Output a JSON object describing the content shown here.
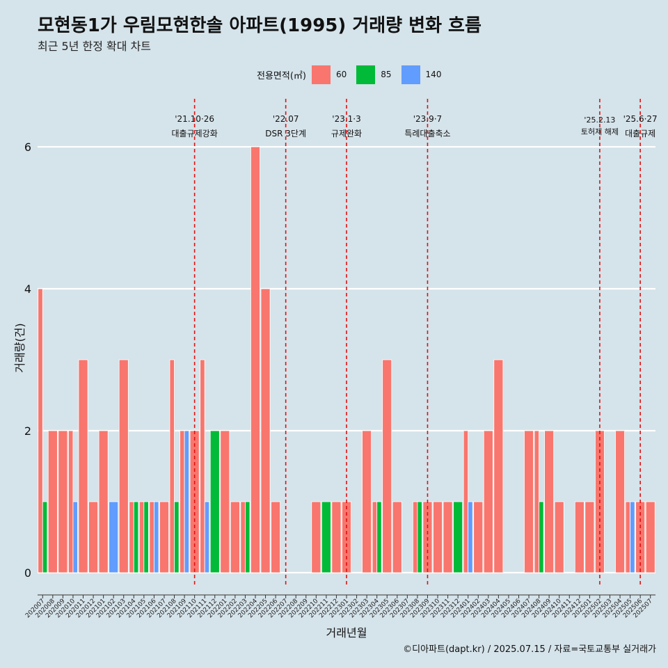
{
  "title": "모현동1가 우림모현한솔 아파트(1995) 거래량 변화 흐름",
  "subtitle": "최근 5년 한정 확대 차트",
  "caption": "©디아파트(dapt.kr) / 2025.07.15 / 자료=국토교통부 실거래가",
  "legend": {
    "title": "전용면적(㎡)",
    "items": [
      {
        "label": "60",
        "color": "#f8766d"
      },
      {
        "label": "85",
        "color": "#00ba38"
      },
      {
        "label": "140",
        "color": "#619cff"
      }
    ]
  },
  "chart_data": {
    "type": "bar",
    "stacking": "dodge",
    "xlabel": "거래년월",
    "ylabel": "거래량(건)",
    "ylim": [
      0,
      6
    ],
    "yticks": [
      0,
      2,
      4,
      6
    ],
    "grid": true,
    "categories": [
      "202007",
      "202008",
      "202009",
      "202010",
      "202011",
      "202012",
      "202101",
      "202102",
      "202103",
      "202104",
      "202105",
      "202106",
      "202107",
      "202108",
      "202109",
      "202110",
      "202111",
      "202112",
      "202201",
      "202202",
      "202203",
      "202204",
      "202205",
      "202206",
      "202207",
      "202208",
      "202209",
      "202210",
      "202211",
      "202212",
      "202301",
      "202302",
      "202303",
      "202304",
      "202305",
      "202306",
      "202307",
      "202308",
      "202309",
      "202310",
      "202311",
      "202312",
      "202401",
      "202402",
      "202403",
      "202404",
      "202405",
      "202406",
      "202407",
      "202408",
      "202409",
      "202410",
      "202411",
      "202412",
      "202501",
      "202502",
      "202503",
      "202504",
      "202505",
      "202506",
      "202507"
    ],
    "series": [
      {
        "name": "60",
        "color": "#f8766d",
        "values": [
          4,
          2,
          2,
          2,
          3,
          1,
          2,
          0,
          3,
          1,
          1,
          1,
          1,
          3,
          2,
          2,
          3,
          0,
          2,
          1,
          1,
          6,
          4,
          1,
          0,
          0,
          0,
          1,
          0,
          1,
          1,
          0,
          2,
          1,
          3,
          1,
          0,
          1,
          1,
          1,
          1,
          0,
          2,
          1,
          2,
          3,
          0,
          0,
          2,
          2,
          2,
          1,
          0,
          1,
          1,
          2,
          0,
          2,
          1,
          1,
          1
        ]
      },
      {
        "name": "85",
        "color": "#00ba38",
        "values": [
          1,
          0,
          0,
          0,
          0,
          0,
          0,
          0,
          0,
          1,
          1,
          0,
          0,
          1,
          0,
          0,
          0,
          2,
          0,
          0,
          1,
          0,
          0,
          0,
          0,
          0,
          0,
          0,
          1,
          0,
          0,
          0,
          0,
          1,
          0,
          0,
          0,
          1,
          0,
          0,
          0,
          1,
          0,
          0,
          0,
          0,
          0,
          0,
          0,
          1,
          0,
          0,
          0,
          0,
          0,
          0,
          0,
          0,
          0,
          0,
          0
        ]
      },
      {
        "name": "140",
        "color": "#619cff",
        "values": [
          0,
          0,
          0,
          1,
          0,
          0,
          0,
          1,
          0,
          0,
          0,
          1,
          0,
          0,
          2,
          0,
          1,
          0,
          0,
          0,
          0,
          0,
          0,
          0,
          0,
          0,
          0,
          0,
          0,
          0,
          0,
          0,
          0,
          0,
          0,
          0,
          0,
          0,
          0,
          0,
          0,
          0,
          1,
          0,
          0,
          0,
          0,
          0,
          0,
          0,
          0,
          0,
          0,
          0,
          0,
          0,
          0,
          0,
          1,
          0,
          0
        ]
      }
    ],
    "events": [
      {
        "date": "202110",
        "label1": "'21.10·26",
        "label2": "대출규제강화"
      },
      {
        "date": "202207",
        "label1": "'22.07",
        "label2": "DSR 3단계"
      },
      {
        "date": "202301",
        "label1": "'23.1·3",
        "label2": "규제완화"
      },
      {
        "date": "202309",
        "label1": "'23.9·7",
        "label2": "특례대출축소"
      },
      {
        "date": "202502",
        "label1": "'25.2.13",
        "label2": "토허제 해제"
      },
      {
        "date": "202506",
        "label1": "'25.6·27",
        "label2": "대출규제"
      }
    ]
  }
}
